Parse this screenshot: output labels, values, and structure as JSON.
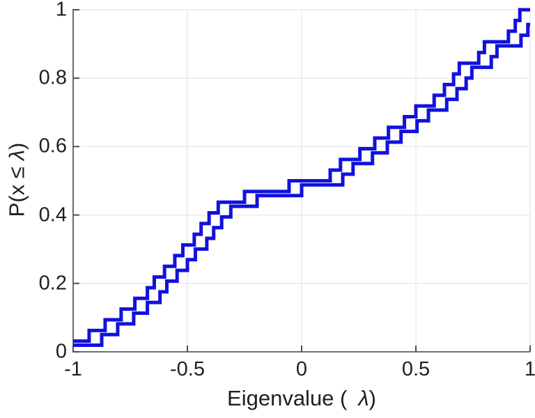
{
  "chart_data": {
    "type": "step",
    "subtype": "empirical-cdf-of-eigenvalues",
    "title": "",
    "xlabel": {
      "text": "Eigenvalue ( λ)",
      "prefix": "Eigenvalue (",
      "lambda": "λ",
      "suffix": ")"
    },
    "ylabel": {
      "text": "P(x ≤ λ)",
      "prefix": "P(x ≤",
      "lambda": "λ",
      "suffix": ")"
    },
    "xlim": [
      -1,
      1
    ],
    "ylim": [
      0,
      1
    ],
    "xticks": {
      "values": [
        -1,
        -0.5,
        0,
        0.5,
        1
      ],
      "labels": [
        "-1",
        "-0.5",
        "0",
        "0.5",
        "1"
      ]
    },
    "yticks": {
      "values": [
        0,
        0.2,
        0.4,
        0.6,
        0.8,
        1
      ],
      "labels": [
        "0",
        "0.2",
        "0.4",
        "0.6",
        "0.8",
        "1"
      ]
    },
    "grid": true,
    "legend": null,
    "style": {
      "line_color": "#1111dd",
      "line_width": 5,
      "grid_color": "#e8e8e8",
      "axis_color": "#6e6e6e",
      "tick_color": "#4d4d4d",
      "text_color": "#1f1f1f",
      "background": "#ffffff"
    },
    "series": [
      {
        "name": "eigenvalue-cdf-primary",
        "step_size": 0.03125,
        "p_offset": 0,
        "eigenvalues": [
          -1.0,
          -0.93,
          -0.86,
          -0.79,
          -0.73,
          -0.675,
          -0.645,
          -0.6,
          -0.555,
          -0.52,
          -0.47,
          -0.44,
          -0.405,
          -0.365,
          -0.25,
          -0.055,
          0.125,
          0.17,
          0.255,
          0.32,
          0.38,
          0.45,
          0.5,
          0.58,
          0.625,
          0.665,
          0.69,
          0.775,
          0.8,
          0.905,
          0.935,
          0.955
        ]
      },
      {
        "name": "eigenvalue-cdf-secondary",
        "step_size": 0.03125,
        "p_offset": -0.012,
        "eigenvalues": [
          -1.0,
          -0.875,
          -0.805,
          -0.735,
          -0.675,
          -0.62,
          -0.59,
          -0.545,
          -0.5,
          -0.465,
          -0.415,
          -0.385,
          -0.35,
          -0.31,
          -0.195,
          0.0,
          0.18,
          0.225,
          0.31,
          0.375,
          0.435,
          0.505,
          0.555,
          0.635,
          0.68,
          0.72,
          0.745,
          0.83,
          0.855,
          0.96,
          0.99,
          1.01
        ]
      }
    ]
  }
}
